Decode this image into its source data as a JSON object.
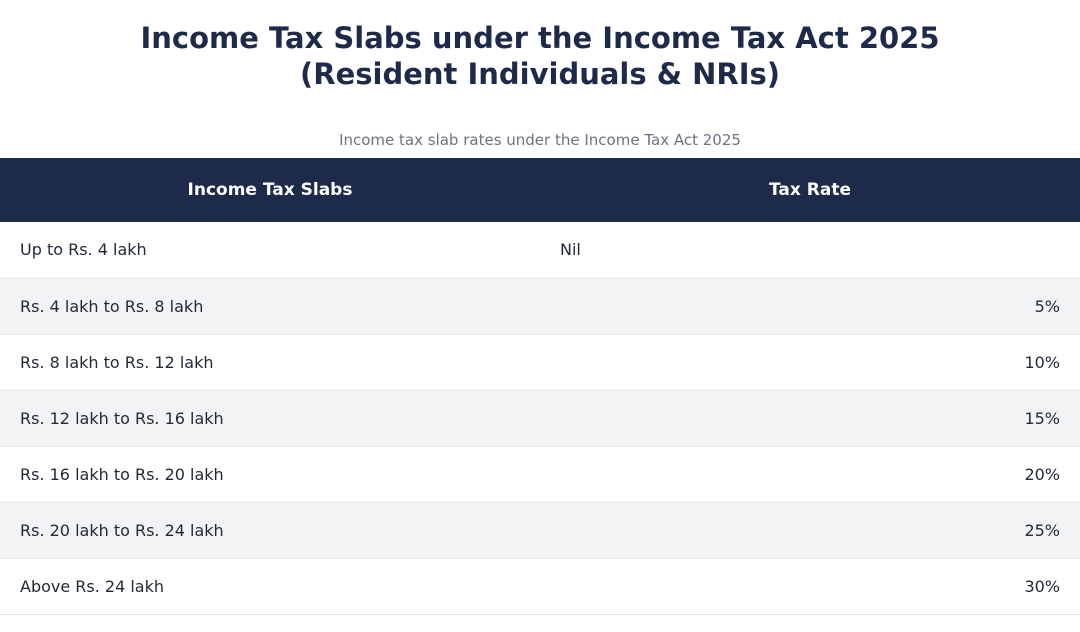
{
  "page": {
    "title_line1": "Income Tax Slabs under the Income Tax Act 2025",
    "title_line2": "(Resident Individuals & NRIs)",
    "caption": "Income tax slab rates under the Income Tax Act 2025"
  },
  "table": {
    "headers": [
      "Income Tax Slabs",
      "Tax Rate"
    ],
    "rows": [
      {
        "slab": "Up to Rs. 4 lakh",
        "rate": "Nil"
      },
      {
        "slab": "Rs. 4 lakh to Rs. 8 lakh",
        "rate": "5%"
      },
      {
        "slab": "Rs. 8 lakh to Rs. 12 lakh",
        "rate": "10%"
      },
      {
        "slab": "Rs. 12 lakh to Rs. 16 lakh",
        "rate": "15%"
      },
      {
        "slab": "Rs. 16 lakh to Rs. 20 lakh",
        "rate": "20%"
      },
      {
        "slab": "Rs. 20 lakh to Rs. 24 lakh",
        "rate": "25%"
      },
      {
        "slab": "Above Rs. 24 lakh",
        "rate": "30%"
      }
    ]
  },
  "colors": {
    "header_bg": "#1e2a4a",
    "title_text": "#1e2a4a",
    "stripe_bg": "#f2f3f5",
    "caption_text": "#6b7280"
  }
}
